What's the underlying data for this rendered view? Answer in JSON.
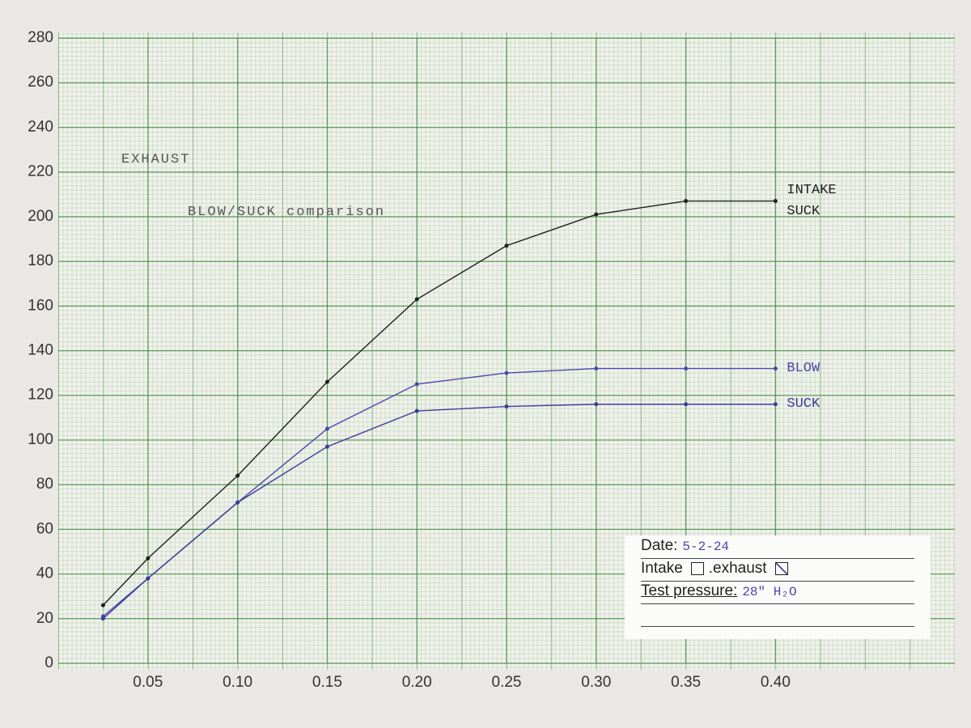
{
  "chart_data": {
    "type": "line",
    "annotations": [
      "EXHAUST",
      "BLOW/SUCK comparison"
    ],
    "x": [
      0.025,
      0.05,
      0.1,
      0.15,
      0.2,
      0.25,
      0.3,
      0.35,
      0.4
    ],
    "series": [
      {
        "name": "INTAKE SUCK",
        "color": "#1e1e1e",
        "values": [
          26,
          47,
          84,
          126,
          163,
          187,
          201,
          207,
          207
        ]
      },
      {
        "name": "BLOW",
        "color": "#4b47a8",
        "values": [
          21,
          38,
          72,
          105,
          125,
          130,
          132,
          132,
          132
        ]
      },
      {
        "name": "SUCK",
        "color": "#3d3a9a",
        "values": [
          20,
          38,
          72,
          97,
          113,
          115,
          116,
          116,
          116
        ]
      }
    ],
    "xlim": [
      0,
      0.5
    ],
    "xticks": [
      {
        "value": 0.05,
        "label": "0.05"
      },
      {
        "value": 0.1,
        "label": "0.10"
      },
      {
        "value": 0.15,
        "label": "0.15"
      },
      {
        "value": 0.2,
        "label": "0.20"
      },
      {
        "value": 0.25,
        "label": "0.25"
      },
      {
        "value": 0.3,
        "label": "0.30"
      },
      {
        "value": 0.35,
        "label": "0.35"
      },
      {
        "value": 0.4,
        "label": "0.40"
      }
    ],
    "ylim": [
      0,
      280
    ],
    "yticks": [
      0,
      20,
      40,
      60,
      80,
      100,
      120,
      140,
      160,
      180,
      200,
      220,
      240,
      260,
      280
    ],
    "grid": true
  },
  "form": {
    "date_label": "Date:",
    "date": "5-2-24",
    "intake_label": "Intake",
    "exhaust_label": ".exhaust",
    "pressure_label": "Test pressure:",
    "pressure": "28\" H₂O"
  }
}
